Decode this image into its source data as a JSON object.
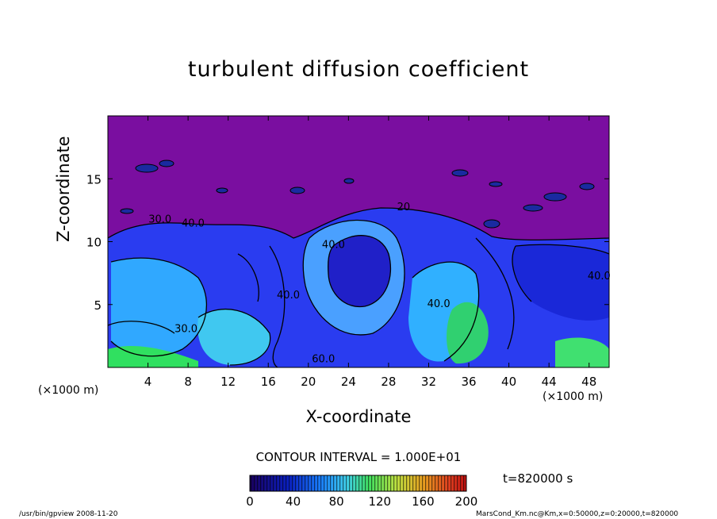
{
  "footer": {
    "left": "/usr/bin/gpview   2008-11-20",
    "right": "MarsCond_Km.nc@Km,x=0:50000,z=0:20000,t=820000"
  },
  "chart_data": {
    "type": "heatmap",
    "title": "turbulent diffusion coefficient",
    "xlabel": "X-coordinate",
    "ylabel": "Z-coordinate",
    "x_unit": "(×1000 m)",
    "z_unit": "(×1000 m)",
    "xlim": [
      0,
      50
    ],
    "ylim": [
      0,
      20
    ],
    "x_ticks": [
      4,
      8,
      12,
      16,
      20,
      24,
      28,
      32,
      36,
      40,
      44,
      48
    ],
    "y_ticks": [
      5,
      10,
      15
    ],
    "contour_interval": "CONTOUR INTERVAL = 1.000E+01",
    "time": "t=820000 s",
    "colorbar": {
      "min": 0,
      "max": 200,
      "ticks": [
        0,
        40,
        80,
        120,
        160,
        200
      ]
    },
    "contour_labels": [
      {
        "text": "30.0",
        "x": 5.2,
        "z": 11.5
      },
      {
        "text": "40.0",
        "x": 8.5,
        "z": 11.2
      },
      {
        "text": "40.0",
        "x": 22.5,
        "z": 9.5
      },
      {
        "text": "40.0",
        "x": 18.0,
        "z": 5.5
      },
      {
        "text": "40.0",
        "x": 33.0,
        "z": 4.8
      },
      {
        "text": "40.0",
        "x": 49.0,
        "z": 7.0
      },
      {
        "text": "30.0",
        "x": 7.8,
        "z": 2.8
      },
      {
        "text": "60.0",
        "x": 21.5,
        "z": 0.4
      },
      {
        "text": "20",
        "x": 29.5,
        "z": 12.5
      }
    ]
  }
}
